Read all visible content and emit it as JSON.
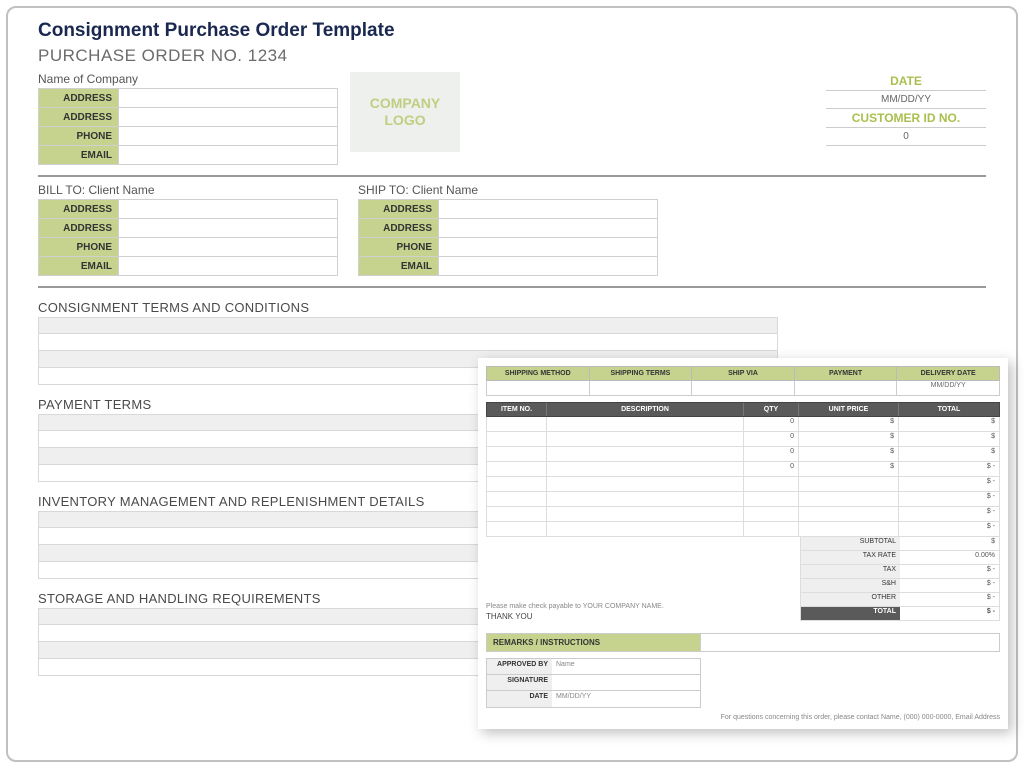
{
  "colors": {
    "accent": "#c6d38f",
    "darkHeader": "#5a5a5a",
    "title": "#1a2850"
  },
  "title": "Consignment Purchase Order Template",
  "poNumber": "PURCHASE ORDER NO. 1234",
  "company": {
    "nameLabel": "Name of Company",
    "fields": [
      "ADDRESS",
      "ADDRESS",
      "PHONE",
      "EMAIL"
    ],
    "logo": "COMPANY LOGO"
  },
  "dateBox": {
    "dateLabel": "DATE",
    "dateValue": "MM/DD/YY",
    "custLabel": "CUSTOMER ID NO.",
    "custValue": "0"
  },
  "billTo": {
    "title": "BILL TO: Client Name",
    "fields": [
      "ADDRESS",
      "ADDRESS",
      "PHONE",
      "EMAIL"
    ]
  },
  "shipTo": {
    "title": "SHIP TO: Client Name",
    "fields": [
      "ADDRESS",
      "ADDRESS",
      "PHONE",
      "EMAIL"
    ]
  },
  "sections": {
    "terms": "CONSIGNMENT TERMS AND CONDITIONS",
    "payment": "PAYMENT TERMS",
    "inventory": "INVENTORY MANAGEMENT AND REPLENISHMENT DETAILS",
    "storage": "STORAGE AND HANDLING REQUIREMENTS"
  },
  "overlay": {
    "shipHeaders": [
      "SHIPPING METHOD",
      "SHIPPING TERMS",
      "SHIP VIA",
      "PAYMENT",
      "DELIVERY DATE"
    ],
    "shipRow": [
      "",
      "",
      "",
      "",
      "MM/DD/YY"
    ],
    "itemHeaders": [
      "ITEM NO.",
      "DESCRIPTION",
      "QTY",
      "UNIT PRICE",
      "TOTAL"
    ],
    "items": [
      {
        "no": "",
        "desc": "",
        "qty": "0",
        "price": "$",
        "total": "$"
      },
      {
        "no": "",
        "desc": "",
        "qty": "0",
        "price": "$",
        "total": "$"
      },
      {
        "no": "",
        "desc": "",
        "qty": "0",
        "price": "$",
        "total": "$"
      },
      {
        "no": "",
        "desc": "",
        "qty": "0",
        "price": "$",
        "total": "$   -"
      },
      {
        "no": "",
        "desc": "",
        "qty": "",
        "price": "",
        "total": "$   -"
      },
      {
        "no": "",
        "desc": "",
        "qty": "",
        "price": "",
        "total": "$   -"
      },
      {
        "no": "",
        "desc": "",
        "qty": "",
        "price": "",
        "total": "$   -"
      },
      {
        "no": "",
        "desc": "",
        "qty": "",
        "price": "",
        "total": "$   -"
      }
    ],
    "totals": [
      {
        "label": "SUBTOTAL",
        "value": "$"
      },
      {
        "label": "TAX RATE",
        "value": "0.00%"
      },
      {
        "label": "TAX",
        "value": "$   -"
      },
      {
        "label": "S&H",
        "value": "$   -"
      },
      {
        "label": "OTHER",
        "value": "$   -"
      }
    ],
    "grandTotal": {
      "label": "TOTAL",
      "value": "$   -"
    },
    "note": "Please make check payable to YOUR COMPANY NAME.",
    "thankYou": "THANK YOU",
    "remarksLabel": "REMARKS / INSTRUCTIONS",
    "approve": [
      {
        "label": "APPROVED BY",
        "value": "Name"
      },
      {
        "label": "SIGNATURE",
        "value": ""
      },
      {
        "label": "DATE",
        "value": "MM/DD/YY"
      }
    ],
    "footer": "For questions concerning this order, please contact Name, (000) 000-0000, Email Address"
  }
}
